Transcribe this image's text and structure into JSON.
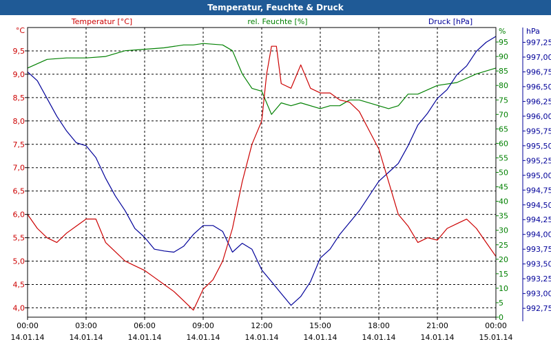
{
  "window": {
    "title": "Temperatur, Feuchte & Druck"
  },
  "chart_data": {
    "type": "line",
    "x_ticks": [
      {
        "time": "00:00",
        "date": "14.01.14"
      },
      {
        "time": "03:00",
        "date": "14.01.14"
      },
      {
        "time": "06:00",
        "date": "14.01.14"
      },
      {
        "time": "09:00",
        "date": "14.01.14"
      },
      {
        "time": "12:00",
        "date": "14.01.14"
      },
      {
        "time": "15:00",
        "date": "14.01.14"
      },
      {
        "time": "18:00",
        "date": "14.01.14"
      },
      {
        "time": "21:00",
        "date": "14.01.14"
      },
      {
        "time": "00:00",
        "date": "15.01.14"
      }
    ],
    "grid": true,
    "axes": {
      "temperature": {
        "unit": "°C",
        "label": "Temperatur [°C]",
        "color": "#cc0000",
        "min": 3.8,
        "max": 10.0,
        "ticks": [
          "4,0",
          "4,5",
          "5,0",
          "5,5",
          "6,0",
          "6,5",
          "7,0",
          "7,5",
          "8,0",
          "8,5",
          "9,0",
          "9,5"
        ]
      },
      "humidity": {
        "unit": "%",
        "label": "rel. Feuchte [%]",
        "color": "#008000",
        "min": 0,
        "max": 100,
        "ticks": [
          "0",
          "5",
          "10",
          "15",
          "20",
          "25",
          "30",
          "35",
          "40",
          "45",
          "50",
          "55",
          "60",
          "65",
          "70",
          "75",
          "80",
          "85",
          "90",
          "95"
        ]
      },
      "pressure": {
        "unit": "hPa",
        "label": "Druck [hPa]",
        "color": "#000099",
        "min": 992.6,
        "max": 997.5,
        "ticks": [
          "992,75",
          "993,00",
          "993,25",
          "993,50",
          "993,75",
          "994,00",
          "994,25",
          "994,50",
          "994,75",
          "995,00",
          "995,25",
          "995,50",
          "995,75",
          "996,00",
          "996,25",
          "996,50",
          "996,75",
          "997,00",
          "997,25"
        ]
      }
    },
    "series": [
      {
        "name": "Temperatur [°C]",
        "axis": "temperature",
        "x_hours": [
          0,
          0.5,
          1,
          1.5,
          2,
          2.5,
          3,
          3.5,
          4,
          4.5,
          5,
          5.5,
          6,
          6.5,
          7,
          7.5,
          8,
          8.5,
          9,
          9.5,
          10,
          10.5,
          11,
          11.5,
          12,
          12.25,
          12.5,
          12.75,
          13,
          13.5,
          14,
          14.5,
          15,
          15.5,
          16,
          16.5,
          17,
          17.5,
          18,
          18.5,
          19,
          19.5,
          20,
          20.5,
          21,
          21.5,
          22,
          22.5,
          23,
          23.5,
          24
        ],
        "values": [
          6.0,
          5.7,
          5.5,
          5.4,
          5.6,
          5.75,
          5.9,
          5.9,
          5.4,
          5.2,
          5.0,
          4.9,
          4.8,
          4.65,
          4.5,
          4.35,
          4.15,
          3.95,
          4.4,
          4.6,
          5.0,
          5.7,
          6.7,
          7.5,
          8.0,
          9.0,
          9.6,
          9.6,
          8.8,
          8.7,
          9.2,
          8.7,
          8.6,
          8.6,
          8.45,
          8.4,
          8.2,
          7.8,
          7.4,
          6.7,
          6.0,
          5.75,
          5.4,
          5.5,
          5.45,
          5.7,
          5.8,
          5.9,
          5.7,
          5.4,
          5.1
        ]
      },
      {
        "name": "rel. Feuchte [%]",
        "axis": "humidity",
        "x_hours": [
          0,
          1,
          2,
          3,
          4,
          5,
          6,
          7,
          8,
          8.5,
          9,
          10,
          10.5,
          11,
          11.5,
          12,
          12.5,
          13,
          13.5,
          14,
          15,
          15.5,
          16,
          16.5,
          17,
          18,
          18.5,
          19,
          19.5,
          20,
          21,
          22,
          23,
          24
        ],
        "values": [
          86,
          89,
          89.5,
          89.5,
          90,
          92,
          92.5,
          93,
          94,
          94,
          94.5,
          94,
          92,
          84,
          79,
          78,
          70,
          74,
          73,
          74,
          72,
          73,
          73,
          75,
          75,
          73,
          72,
          73,
          77,
          77,
          80,
          81,
          84,
          86
        ]
      },
      {
        "name": "Druck [hPa]",
        "axis": "pressure",
        "x_hours": [
          0,
          0.5,
          1,
          1.5,
          2,
          2.5,
          3,
          3.5,
          4,
          4.5,
          5,
          5.5,
          6,
          6.5,
          7,
          7.5,
          8,
          8.5,
          9,
          9.5,
          10,
          10.5,
          11,
          11.5,
          12,
          12.5,
          13,
          13.5,
          14,
          14.5,
          15,
          15.5,
          16,
          16.5,
          17,
          17.5,
          18,
          18.5,
          19,
          19.5,
          20,
          20.5,
          21,
          21.5,
          22,
          22.5,
          23,
          23.5,
          24
        ],
        "values": [
          996.75,
          996.6,
          996.3,
          996.0,
          995.75,
          995.55,
          995.5,
          995.3,
          994.95,
          994.65,
          994.4,
          994.1,
          993.95,
          993.75,
          993.72,
          993.7,
          993.8,
          994.0,
          994.15,
          994.15,
          994.05,
          993.7,
          993.85,
          993.75,
          993.4,
          993.2,
          993.0,
          992.8,
          992.95,
          993.2,
          993.6,
          993.75,
          994.0,
          994.2,
          994.4,
          994.65,
          994.9,
          995.05,
          995.2,
          995.5,
          995.85,
          996.05,
          996.3,
          996.45,
          996.7,
          996.85,
          997.1,
          997.25,
          997.35
        ]
      }
    ]
  }
}
